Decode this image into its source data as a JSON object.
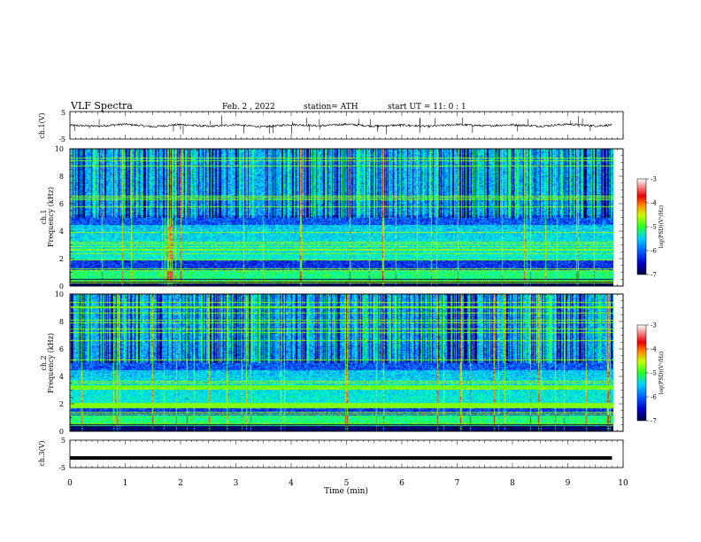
{
  "header": {
    "title": "VLF  Spectra",
    "date": "Feb. 2  , 2022",
    "station": "station= ATH",
    "start": "start  UT  =    11: 0   : 1"
  },
  "colors": {
    "spectrogram_scale": [
      "#000060",
      "#0000c8",
      "#0050ff",
      "#00b4ff",
      "#00ffc8",
      "#28ff28",
      "#c8ff00",
      "#ffd200",
      "#ff4600",
      "#e60000",
      "#ffffff"
    ],
    "trace": "#000000",
    "frame": "#000000"
  },
  "chart_data": [
    {
      "type": "line",
      "name": "ch1-waveform-panel",
      "ylabel": "ch.1(V)",
      "ylim": [
        -5,
        5
      ],
      "yticks": [
        "5",
        "-5"
      ],
      "xlim": [
        0,
        10
      ],
      "series": [
        {
          "x": [
            0,
            0.5,
            1,
            1.5,
            2,
            2.5,
            3,
            3.5,
            4,
            4.5,
            5,
            5.5,
            6,
            6.5,
            7,
            7.5,
            8,
            8.5,
            9,
            9.5,
            9.8
          ],
          "values": [
            0.0,
            -0.3,
            0.4,
            -0.5,
            0.3,
            -0.4,
            0.2,
            -0.6,
            0.3,
            -0.2,
            0.4,
            -0.3,
            0.1,
            -0.4,
            0.3,
            -0.2,
            0.2,
            -0.3,
            0.4,
            -0.2,
            0.1
          ]
        }
      ],
      "grid": false
    },
    {
      "type": "heatmap",
      "name": "ch1-spectrogram",
      "ylabel": "ch.1\nFrequency  (kHz)",
      "ylim": [
        0,
        10
      ],
      "yticks": [
        "0",
        "2",
        "4",
        "6",
        "8",
        "10"
      ],
      "xlim": [
        0,
        9.8
      ],
      "colorbar": {
        "label": "log(PSD)(V²/Hz)",
        "range": [
          -7,
          -3
        ],
        "ticks": [
          "-3",
          "-4",
          "-5",
          "-6",
          "-7"
        ]
      }
    },
    {
      "type": "heatmap",
      "name": "ch2-spectrogram",
      "ylabel": "ch.2\nFrequency  (kHz)",
      "ylim": [
        0,
        10
      ],
      "yticks": [
        "0",
        "2",
        "4",
        "6",
        "8",
        "10"
      ],
      "xlim": [
        0,
        9.8
      ],
      "colorbar": {
        "label": "log(PSD)(V²/Hz)",
        "range": [
          -7,
          -3
        ],
        "ticks": [
          "-3",
          "-4",
          "-5",
          "-6",
          "-7"
        ]
      }
    },
    {
      "type": "line",
      "name": "ch3-waveform-panel",
      "ylabel": "ch.3(V)",
      "ylim": [
        -5,
        5
      ],
      "yticks": [
        "5",
        "-5"
      ],
      "xlim": [
        0,
        10
      ],
      "xlabel": "Time  (min)",
      "xticks": [
        "0",
        "1",
        "2",
        "3",
        "4",
        "5",
        "6",
        "7",
        "8",
        "9",
        "10"
      ],
      "series": [
        {
          "x": [
            0,
            9.8
          ],
          "values": [
            -1.5,
            -1.5
          ]
        }
      ],
      "grid": false
    }
  ]
}
